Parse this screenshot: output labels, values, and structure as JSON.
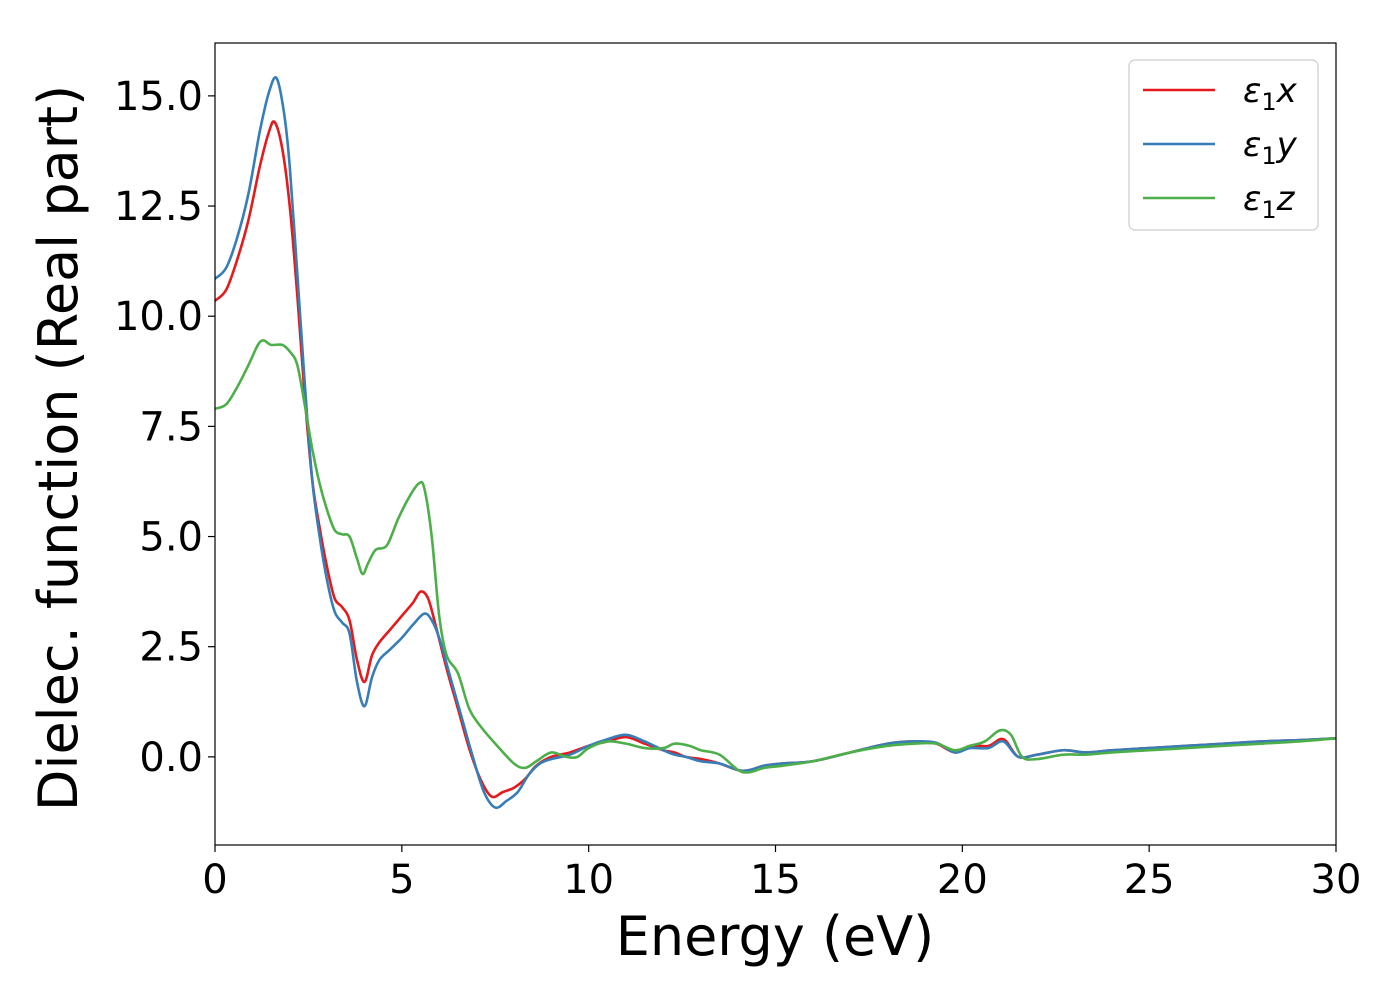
{
  "chart_data": {
    "type": "line",
    "title": "",
    "xlabel": "Energy (eV)",
    "ylabel": "Dielec. function (Real part)",
    "xlim": [
      0,
      30
    ],
    "ylim": [
      -2.0,
      16.2
    ],
    "x_ticks": [
      "0",
      "5",
      "10",
      "15",
      "20",
      "25",
      "30"
    ],
    "x_tick_values": [
      0,
      5,
      10,
      15,
      20,
      25,
      30
    ],
    "y_ticks": [
      "0.0",
      "2.5",
      "5.0",
      "7.5",
      "10.0",
      "12.5",
      "15.0"
    ],
    "y_tick_values": [
      0,
      2.5,
      5,
      7.5,
      10,
      12.5,
      15
    ],
    "grid": false,
    "legend": {
      "placement": "top-right"
    },
    "series": [
      {
        "name": "ε₁x",
        "label_base": "ε",
        "label_sub": "1",
        "label_var": "x",
        "color": "#e41a1c",
        "x": [
          0,
          0.3,
          0.6,
          0.9,
          1.2,
          1.45,
          1.6,
          1.8,
          2.0,
          2.2,
          2.4,
          2.6,
          2.8,
          3.0,
          3.2,
          3.4,
          3.6,
          3.8,
          4.0,
          4.2,
          4.4,
          4.7,
          5.0,
          5.3,
          5.5,
          5.7,
          5.9,
          6.2,
          6.5,
          6.8,
          7.1,
          7.4,
          7.7,
          8.0,
          8.3,
          8.6,
          9.0,
          9.5,
          10.0,
          10.5,
          11.0,
          11.5,
          12.0,
          12.3,
          12.6,
          13.0,
          13.5,
          14.0,
          14.3,
          14.7,
          15.2,
          16.0,
          17.0,
          18.0,
          18.7,
          19.3,
          19.8,
          20.2,
          20.7,
          21.1,
          21.5,
          22.0,
          22.7,
          23.3,
          24.0,
          25.0,
          26.0,
          27.0,
          28.0,
          29.0,
          30.0
        ],
        "y": [
          10.35,
          10.6,
          11.3,
          12.2,
          13.4,
          14.2,
          14.4,
          13.8,
          12.5,
          10.5,
          8.2,
          6.3,
          5.2,
          4.3,
          3.6,
          3.4,
          3.1,
          2.2,
          1.7,
          2.3,
          2.6,
          2.9,
          3.2,
          3.5,
          3.75,
          3.6,
          3.0,
          2.0,
          1.1,
          0.2,
          -0.5,
          -0.9,
          -0.8,
          -0.7,
          -0.5,
          -0.2,
          0.0,
          0.1,
          0.25,
          0.35,
          0.45,
          0.3,
          0.15,
          0.1,
          0.0,
          -0.05,
          -0.15,
          -0.3,
          -0.3,
          -0.2,
          -0.15,
          -0.1,
          0.1,
          0.3,
          0.35,
          0.3,
          0.1,
          0.25,
          0.25,
          0.4,
          0.0,
          0.05,
          0.15,
          0.1,
          0.15,
          0.2,
          0.25,
          0.3,
          0.35,
          0.38,
          0.42
        ]
      },
      {
        "name": "ε₁y",
        "label_base": "ε",
        "label_sub": "1",
        "label_var": "y",
        "color": "#377eb8",
        "x": [
          0,
          0.3,
          0.6,
          0.9,
          1.2,
          1.45,
          1.65,
          1.85,
          2.0,
          2.2,
          2.4,
          2.6,
          2.8,
          3.0,
          3.2,
          3.4,
          3.6,
          3.8,
          4.0,
          4.2,
          4.4,
          4.7,
          5.0,
          5.3,
          5.6,
          5.8,
          6.0,
          6.3,
          6.6,
          6.9,
          7.2,
          7.5,
          7.8,
          8.1,
          8.4,
          8.7,
          9.0,
          9.5,
          10.0,
          10.5,
          11.0,
          11.5,
          12.0,
          12.3,
          12.6,
          13.0,
          13.5,
          14.0,
          14.3,
          14.7,
          15.2,
          16.0,
          17.0,
          18.0,
          18.7,
          19.3,
          19.8,
          20.2,
          20.7,
          21.1,
          21.5,
          22.0,
          22.7,
          23.3,
          24.0,
          25.0,
          26.0,
          27.0,
          28.0,
          29.0,
          30.0
        ],
        "y": [
          10.85,
          11.1,
          11.8,
          12.8,
          14.2,
          15.1,
          15.4,
          14.6,
          13.4,
          11.0,
          8.5,
          6.3,
          5.0,
          4.0,
          3.3,
          3.05,
          2.8,
          1.7,
          1.15,
          1.8,
          2.2,
          2.45,
          2.7,
          3.0,
          3.25,
          3.1,
          2.7,
          1.8,
          0.9,
          0.0,
          -0.8,
          -1.15,
          -1.0,
          -0.8,
          -0.4,
          -0.15,
          -0.05,
          0.05,
          0.25,
          0.4,
          0.5,
          0.35,
          0.15,
          0.05,
          0.0,
          -0.1,
          -0.15,
          -0.3,
          -0.3,
          -0.2,
          -0.15,
          -0.1,
          0.1,
          0.3,
          0.35,
          0.32,
          0.1,
          0.2,
          0.2,
          0.35,
          0.0,
          0.05,
          0.15,
          0.1,
          0.15,
          0.2,
          0.25,
          0.3,
          0.35,
          0.38,
          0.42
        ]
      },
      {
        "name": "ε₁z",
        "label_base": "ε",
        "label_sub": "1",
        "label_var": "z",
        "color": "#4daf4a",
        "x": [
          0,
          0.3,
          0.6,
          0.9,
          1.15,
          1.3,
          1.5,
          1.8,
          2.0,
          2.2,
          2.4,
          2.6,
          2.8,
          3.0,
          3.2,
          3.4,
          3.6,
          3.8,
          3.95,
          4.1,
          4.3,
          4.6,
          4.9,
          5.2,
          5.45,
          5.6,
          5.8,
          6.0,
          6.2,
          6.5,
          6.8,
          7.1,
          7.5,
          8.0,
          8.3,
          8.6,
          9.0,
          9.4,
          9.7,
          10.0,
          10.5,
          11.0,
          11.5,
          12.0,
          12.3,
          12.7,
          13.0,
          13.5,
          14.0,
          14.3,
          14.7,
          15.2,
          16.0,
          17.0,
          18.0,
          18.7,
          19.3,
          19.8,
          20.2,
          20.6,
          21.0,
          21.3,
          21.6,
          22.0,
          22.7,
          23.3,
          24.0,
          25.0,
          26.0,
          27.0,
          28.0,
          29.0,
          30.0
        ],
        "y": [
          7.9,
          8.0,
          8.4,
          8.9,
          9.35,
          9.45,
          9.35,
          9.35,
          9.2,
          8.9,
          8.0,
          7.0,
          6.2,
          5.6,
          5.15,
          5.05,
          5.0,
          4.5,
          4.15,
          4.4,
          4.7,
          4.8,
          5.4,
          5.9,
          6.2,
          6.1,
          5.0,
          3.2,
          2.3,
          1.9,
          1.1,
          0.7,
          0.3,
          -0.15,
          -0.25,
          -0.1,
          0.1,
          0.0,
          0.0,
          0.2,
          0.35,
          0.3,
          0.2,
          0.2,
          0.3,
          0.25,
          0.15,
          0.05,
          -0.3,
          -0.35,
          -0.25,
          -0.2,
          -0.1,
          0.1,
          0.25,
          0.3,
          0.3,
          0.15,
          0.25,
          0.35,
          0.6,
          0.5,
          0.0,
          -0.05,
          0.05,
          0.05,
          0.1,
          0.15,
          0.2,
          0.25,
          0.3,
          0.35,
          0.42
        ]
      }
    ]
  }
}
